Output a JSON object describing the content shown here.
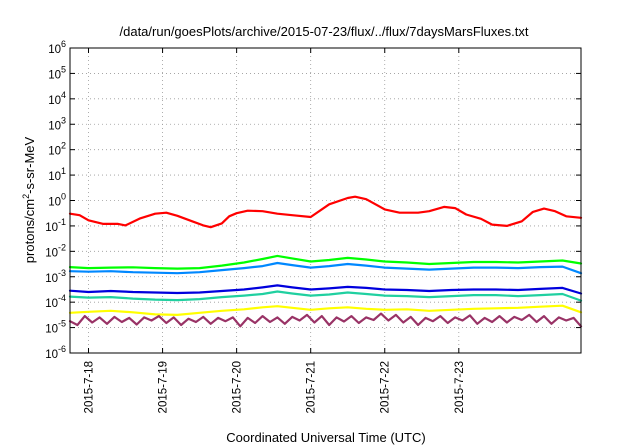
{
  "chart_data": {
    "type": "line",
    "title": "/data/run/goesPlots/archive/2015-07-23/flux/../flux/7daysMarsFluxes.txt",
    "xlabel": "Coordinated Universal Time (UTC)",
    "ylabel": "protons/cm²-s-sr-MeV",
    "ylabel_parts": {
      "pre": "protons/cm",
      "sup": "2",
      "post": "-s-sr-MeV"
    },
    "yscale": "log",
    "ylim_exponents": [
      -6,
      6
    ],
    "yticks": [
      {
        "base": "10",
        "exp": "-6",
        "power": -6
      },
      {
        "base": "10",
        "exp": "-5",
        "power": -5
      },
      {
        "base": "10",
        "exp": "-4",
        "power": -4
      },
      {
        "base": "10",
        "exp": "-3",
        "power": -3
      },
      {
        "base": "10",
        "exp": "-2",
        "power": -2
      },
      {
        "base": "10",
        "exp": "-1",
        "power": -1
      },
      {
        "base": "10",
        "exp": "0",
        "power": 0
      },
      {
        "base": "10",
        "exp": "1",
        "power": 1
      },
      {
        "base": "10",
        "exp": "2",
        "power": 2
      },
      {
        "base": "10",
        "exp": "3",
        "power": 3
      },
      {
        "base": "10",
        "exp": "4",
        "power": 4
      },
      {
        "base": "10",
        "exp": "5",
        "power": 5
      },
      {
        "base": "10",
        "exp": "6",
        "power": 6
      }
    ],
    "xlim_days": [
      -0.25,
      6.65
    ],
    "xticks": [
      {
        "label": "2015-7-18",
        "day": 0
      },
      {
        "label": "2015-7-19",
        "day": 1
      },
      {
        "label": "2015-7-20",
        "day": 2
      },
      {
        "label": "2015-7-21",
        "day": 3
      },
      {
        "label": "2015-7-22",
        "day": 4
      },
      {
        "label": "2015-7-23",
        "day": 5
      }
    ],
    "grid": "dotted",
    "series": [
      {
        "color": "#ff0000",
        "points": [
          [
            -0.25,
            -0.52
          ],
          [
            -0.12,
            -0.58
          ],
          [
            0.0,
            -0.78
          ],
          [
            0.2,
            -0.92
          ],
          [
            0.4,
            -0.92
          ],
          [
            0.5,
            -0.98
          ],
          [
            0.7,
            -0.7
          ],
          [
            0.9,
            -0.52
          ],
          [
            1.05,
            -0.48
          ],
          [
            1.2,
            -0.6
          ],
          [
            1.4,
            -0.82
          ],
          [
            1.55,
            -0.98
          ],
          [
            1.65,
            -1.05
          ],
          [
            1.8,
            -0.9
          ],
          [
            1.9,
            -0.62
          ],
          [
            2.0,
            -0.5
          ],
          [
            2.15,
            -0.4
          ],
          [
            2.35,
            -0.42
          ],
          [
            2.55,
            -0.52
          ],
          [
            2.75,
            -0.58
          ],
          [
            3.0,
            -0.65
          ],
          [
            3.25,
            -0.15
          ],
          [
            3.5,
            0.1
          ],
          [
            3.6,
            0.15
          ],
          [
            3.75,
            0.05
          ],
          [
            4.0,
            -0.35
          ],
          [
            4.2,
            -0.48
          ],
          [
            4.45,
            -0.48
          ],
          [
            4.6,
            -0.42
          ],
          [
            4.8,
            -0.25
          ],
          [
            4.95,
            -0.3
          ],
          [
            5.1,
            -0.55
          ],
          [
            5.3,
            -0.72
          ],
          [
            5.45,
            -0.95
          ],
          [
            5.65,
            -1.0
          ],
          [
            5.85,
            -0.82
          ],
          [
            6.0,
            -0.45
          ],
          [
            6.15,
            -0.32
          ],
          [
            6.3,
            -0.42
          ],
          [
            6.45,
            -0.62
          ],
          [
            6.65,
            -0.68
          ]
        ]
      },
      {
        "color": "#00ff00",
        "points": [
          [
            -0.25,
            -2.62
          ],
          [
            0.0,
            -2.66
          ],
          [
            0.3,
            -2.64
          ],
          [
            0.6,
            -2.63
          ],
          [
            0.9,
            -2.66
          ],
          [
            1.2,
            -2.68
          ],
          [
            1.5,
            -2.66
          ],
          [
            1.8,
            -2.56
          ],
          [
            2.1,
            -2.44
          ],
          [
            2.35,
            -2.3
          ],
          [
            2.55,
            -2.18
          ],
          [
            2.75,
            -2.28
          ],
          [
            3.0,
            -2.4
          ],
          [
            3.25,
            -2.34
          ],
          [
            3.5,
            -2.26
          ],
          [
            3.75,
            -2.32
          ],
          [
            4.0,
            -2.4
          ],
          [
            4.3,
            -2.44
          ],
          [
            4.6,
            -2.5
          ],
          [
            4.9,
            -2.46
          ],
          [
            5.2,
            -2.42
          ],
          [
            5.5,
            -2.42
          ],
          [
            5.8,
            -2.44
          ],
          [
            6.1,
            -2.4
          ],
          [
            6.4,
            -2.36
          ],
          [
            6.65,
            -2.48
          ]
        ]
      },
      {
        "color": "#0088ff",
        "points": [
          [
            -0.25,
            -2.78
          ],
          [
            0.0,
            -2.8
          ],
          [
            0.3,
            -2.78
          ],
          [
            0.6,
            -2.82
          ],
          [
            0.9,
            -2.84
          ],
          [
            1.2,
            -2.86
          ],
          [
            1.5,
            -2.82
          ],
          [
            1.8,
            -2.74
          ],
          [
            2.1,
            -2.66
          ],
          [
            2.35,
            -2.58
          ],
          [
            2.55,
            -2.46
          ],
          [
            2.75,
            -2.54
          ],
          [
            3.0,
            -2.64
          ],
          [
            3.25,
            -2.58
          ],
          [
            3.5,
            -2.5
          ],
          [
            3.75,
            -2.56
          ],
          [
            4.0,
            -2.64
          ],
          [
            4.3,
            -2.68
          ],
          [
            4.6,
            -2.72
          ],
          [
            4.9,
            -2.68
          ],
          [
            5.2,
            -2.64
          ],
          [
            5.5,
            -2.64
          ],
          [
            5.8,
            -2.66
          ],
          [
            6.1,
            -2.62
          ],
          [
            6.4,
            -2.6
          ],
          [
            6.65,
            -2.86
          ]
        ]
      },
      {
        "color": "#0000dd",
        "points": [
          [
            -0.25,
            -3.55
          ],
          [
            0.0,
            -3.6
          ],
          [
            0.3,
            -3.56
          ],
          [
            0.6,
            -3.6
          ],
          [
            0.9,
            -3.62
          ],
          [
            1.2,
            -3.64
          ],
          [
            1.5,
            -3.62
          ],
          [
            1.8,
            -3.56
          ],
          [
            2.1,
            -3.5
          ],
          [
            2.35,
            -3.42
          ],
          [
            2.55,
            -3.34
          ],
          [
            2.75,
            -3.42
          ],
          [
            3.0,
            -3.5
          ],
          [
            3.25,
            -3.46
          ],
          [
            3.5,
            -3.4
          ],
          [
            3.75,
            -3.44
          ],
          [
            4.0,
            -3.5
          ],
          [
            4.3,
            -3.52
          ],
          [
            4.6,
            -3.56
          ],
          [
            4.9,
            -3.52
          ],
          [
            5.2,
            -3.5
          ],
          [
            5.5,
            -3.5
          ],
          [
            5.8,
            -3.52
          ],
          [
            6.1,
            -3.48
          ],
          [
            6.4,
            -3.44
          ],
          [
            6.65,
            -3.66
          ]
        ]
      },
      {
        "color": "#20d0a0",
        "points": [
          [
            -0.25,
            -3.78
          ],
          [
            0.0,
            -3.82
          ],
          [
            0.3,
            -3.8
          ],
          [
            0.6,
            -3.86
          ],
          [
            0.9,
            -3.9
          ],
          [
            1.2,
            -3.92
          ],
          [
            1.5,
            -3.88
          ],
          [
            1.8,
            -3.8
          ],
          [
            2.1,
            -3.74
          ],
          [
            2.35,
            -3.68
          ],
          [
            2.55,
            -3.58
          ],
          [
            2.75,
            -3.66
          ],
          [
            3.0,
            -3.74
          ],
          [
            3.25,
            -3.7
          ],
          [
            3.5,
            -3.62
          ],
          [
            3.75,
            -3.68
          ],
          [
            4.0,
            -3.74
          ],
          [
            4.3,
            -3.76
          ],
          [
            4.6,
            -3.8
          ],
          [
            4.9,
            -3.76
          ],
          [
            5.2,
            -3.72
          ],
          [
            5.5,
            -3.72
          ],
          [
            5.8,
            -3.76
          ],
          [
            6.1,
            -3.72
          ],
          [
            6.4,
            -3.68
          ],
          [
            6.65,
            -3.94
          ]
        ]
      },
      {
        "color": "#ffff00",
        "points": [
          [
            -0.25,
            -4.42
          ],
          [
            0.0,
            -4.38
          ],
          [
            0.3,
            -4.34
          ],
          [
            0.6,
            -4.4
          ],
          [
            0.9,
            -4.48
          ],
          [
            1.2,
            -4.5
          ],
          [
            1.5,
            -4.42
          ],
          [
            1.8,
            -4.34
          ],
          [
            2.1,
            -4.28
          ],
          [
            2.35,
            -4.2
          ],
          [
            2.55,
            -4.16
          ],
          [
            2.75,
            -4.22
          ],
          [
            3.0,
            -4.3
          ],
          [
            3.25,
            -4.24
          ],
          [
            3.5,
            -4.2
          ],
          [
            3.75,
            -4.26
          ],
          [
            4.0,
            -4.3
          ],
          [
            4.3,
            -4.28
          ],
          [
            4.6,
            -4.34
          ],
          [
            4.9,
            -4.3
          ],
          [
            5.2,
            -4.26
          ],
          [
            5.5,
            -4.24
          ],
          [
            5.8,
            -4.22
          ],
          [
            6.1,
            -4.18
          ],
          [
            6.4,
            -4.14
          ],
          [
            6.65,
            -4.4
          ]
        ]
      },
      {
        "color": "#993366",
        "points": [
          [
            -0.25,
            -4.75
          ],
          [
            -0.15,
            -4.9
          ],
          [
            -0.05,
            -4.55
          ],
          [
            0.05,
            -4.8
          ],
          [
            0.15,
            -4.6
          ],
          [
            0.25,
            -4.85
          ],
          [
            0.35,
            -4.58
          ],
          [
            0.45,
            -4.78
          ],
          [
            0.55,
            -4.62
          ],
          [
            0.65,
            -4.88
          ],
          [
            0.75,
            -4.6
          ],
          [
            0.85,
            -4.72
          ],
          [
            0.95,
            -4.55
          ],
          [
            1.05,
            -4.82
          ],
          [
            1.15,
            -4.6
          ],
          [
            1.25,
            -4.9
          ],
          [
            1.35,
            -4.65
          ],
          [
            1.45,
            -4.78
          ],
          [
            1.55,
            -4.58
          ],
          [
            1.65,
            -4.85
          ],
          [
            1.75,
            -4.62
          ],
          [
            1.85,
            -4.75
          ],
          [
            1.95,
            -4.6
          ],
          [
            2.05,
            -4.95
          ],
          [
            2.15,
            -4.62
          ],
          [
            2.25,
            -4.82
          ],
          [
            2.35,
            -4.55
          ],
          [
            2.45,
            -4.78
          ],
          [
            2.55,
            -4.6
          ],
          [
            2.65,
            -4.85
          ],
          [
            2.75,
            -4.58
          ],
          [
            2.85,
            -4.72
          ],
          [
            2.95,
            -4.5
          ],
          [
            3.05,
            -4.8
          ],
          [
            3.15,
            -4.55
          ],
          [
            3.25,
            -4.9
          ],
          [
            3.35,
            -4.6
          ],
          [
            3.45,
            -4.76
          ],
          [
            3.55,
            -4.55
          ],
          [
            3.65,
            -4.82
          ],
          [
            3.75,
            -4.6
          ],
          [
            3.85,
            -4.7
          ],
          [
            3.95,
            -4.45
          ],
          [
            4.05,
            -4.72
          ],
          [
            4.15,
            -4.5
          ],
          [
            4.25,
            -4.8
          ],
          [
            4.35,
            -4.58
          ],
          [
            4.45,
            -4.9
          ],
          [
            4.55,
            -4.62
          ],
          [
            4.65,
            -4.75
          ],
          [
            4.75,
            -4.55
          ],
          [
            4.85,
            -4.82
          ],
          [
            4.95,
            -4.6
          ],
          [
            5.05,
            -4.72
          ],
          [
            5.15,
            -4.52
          ],
          [
            5.25,
            -4.85
          ],
          [
            5.35,
            -4.62
          ],
          [
            5.45,
            -4.78
          ],
          [
            5.55,
            -4.55
          ],
          [
            5.65,
            -4.8
          ],
          [
            5.75,
            -4.58
          ],
          [
            5.85,
            -4.7
          ],
          [
            5.95,
            -4.5
          ],
          [
            6.05,
            -4.78
          ],
          [
            6.15,
            -4.55
          ],
          [
            6.25,
            -4.85
          ],
          [
            6.35,
            -4.6
          ],
          [
            6.45,
            -4.72
          ],
          [
            6.55,
            -4.62
          ],
          [
            6.65,
            -4.95
          ]
        ]
      }
    ]
  }
}
